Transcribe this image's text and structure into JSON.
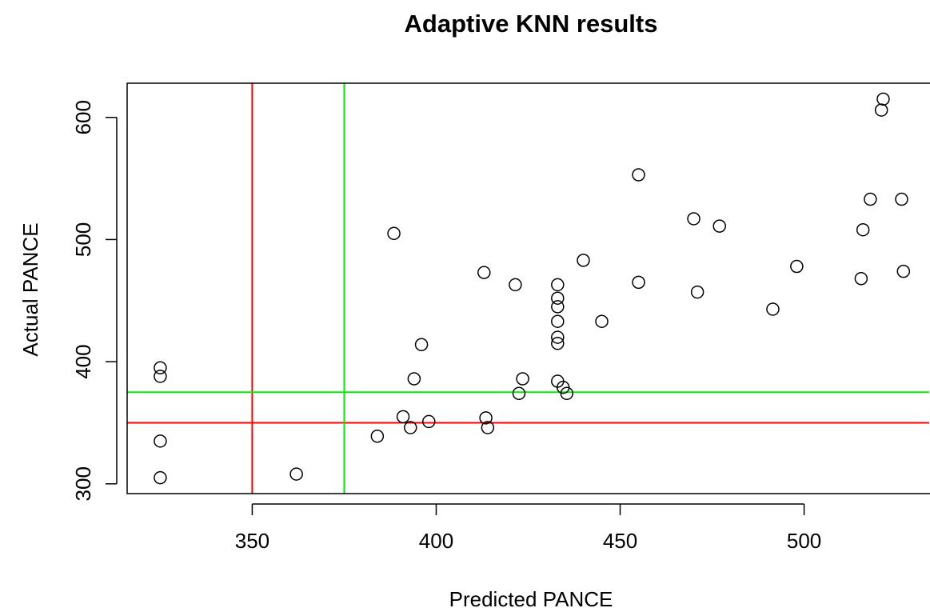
{
  "chart_data": {
    "type": "scatter",
    "title": "Adaptive KNN results",
    "xlabel": "Predicted PANCE",
    "ylabel": "Actual PANCE",
    "xlim": [
      316,
      534
    ],
    "ylim": [
      292,
      628
    ],
    "x_ticks": [
      350,
      400,
      450,
      500
    ],
    "y_ticks": [
      300,
      400,
      500,
      600
    ],
    "grid": false,
    "marker": "open-circle",
    "points": [
      {
        "x": 325,
        "y": 395
      },
      {
        "x": 325,
        "y": 388
      },
      {
        "x": 325,
        "y": 335
      },
      {
        "x": 325,
        "y": 305
      },
      {
        "x": 362,
        "y": 308
      },
      {
        "x": 384,
        "y": 339
      },
      {
        "x": 388.5,
        "y": 505
      },
      {
        "x": 391,
        "y": 355
      },
      {
        "x": 393,
        "y": 346
      },
      {
        "x": 394,
        "y": 386
      },
      {
        "x": 396,
        "y": 414
      },
      {
        "x": 398,
        "y": 351
      },
      {
        "x": 413,
        "y": 473
      },
      {
        "x": 413.5,
        "y": 354
      },
      {
        "x": 414,
        "y": 346
      },
      {
        "x": 421.5,
        "y": 463
      },
      {
        "x": 422.5,
        "y": 374
      },
      {
        "x": 423.5,
        "y": 386
      },
      {
        "x": 433,
        "y": 463
      },
      {
        "x": 433,
        "y": 452
      },
      {
        "x": 433,
        "y": 445
      },
      {
        "x": 433,
        "y": 433
      },
      {
        "x": 433,
        "y": 420
      },
      {
        "x": 433,
        "y": 415
      },
      {
        "x": 433,
        "y": 384
      },
      {
        "x": 434.5,
        "y": 379
      },
      {
        "x": 435.5,
        "y": 374
      },
      {
        "x": 440,
        "y": 483
      },
      {
        "x": 445,
        "y": 433
      },
      {
        "x": 455,
        "y": 553
      },
      {
        "x": 455,
        "y": 465
      },
      {
        "x": 470,
        "y": 517
      },
      {
        "x": 471,
        "y": 457
      },
      {
        "x": 477,
        "y": 511
      },
      {
        "x": 491.5,
        "y": 443
      },
      {
        "x": 498,
        "y": 478
      },
      {
        "x": 515.5,
        "y": 468
      },
      {
        "x": 516,
        "y": 508
      },
      {
        "x": 518,
        "y": 533
      },
      {
        "x": 521,
        "y": 606
      },
      {
        "x": 521.5,
        "y": 615
      },
      {
        "x": 526.5,
        "y": 533
      },
      {
        "x": 527,
        "y": 474
      }
    ],
    "reference_lines": [
      {
        "orientation": "vertical",
        "value": 350,
        "color": "#ff0000"
      },
      {
        "orientation": "horizontal",
        "value": 350,
        "color": "#ff0000"
      },
      {
        "orientation": "vertical",
        "value": 375,
        "color": "#00ee00"
      },
      {
        "orientation": "horizontal",
        "value": 375,
        "color": "#00ee00"
      }
    ],
    "colors": {
      "points": "#000000",
      "axes": "#000000"
    }
  }
}
